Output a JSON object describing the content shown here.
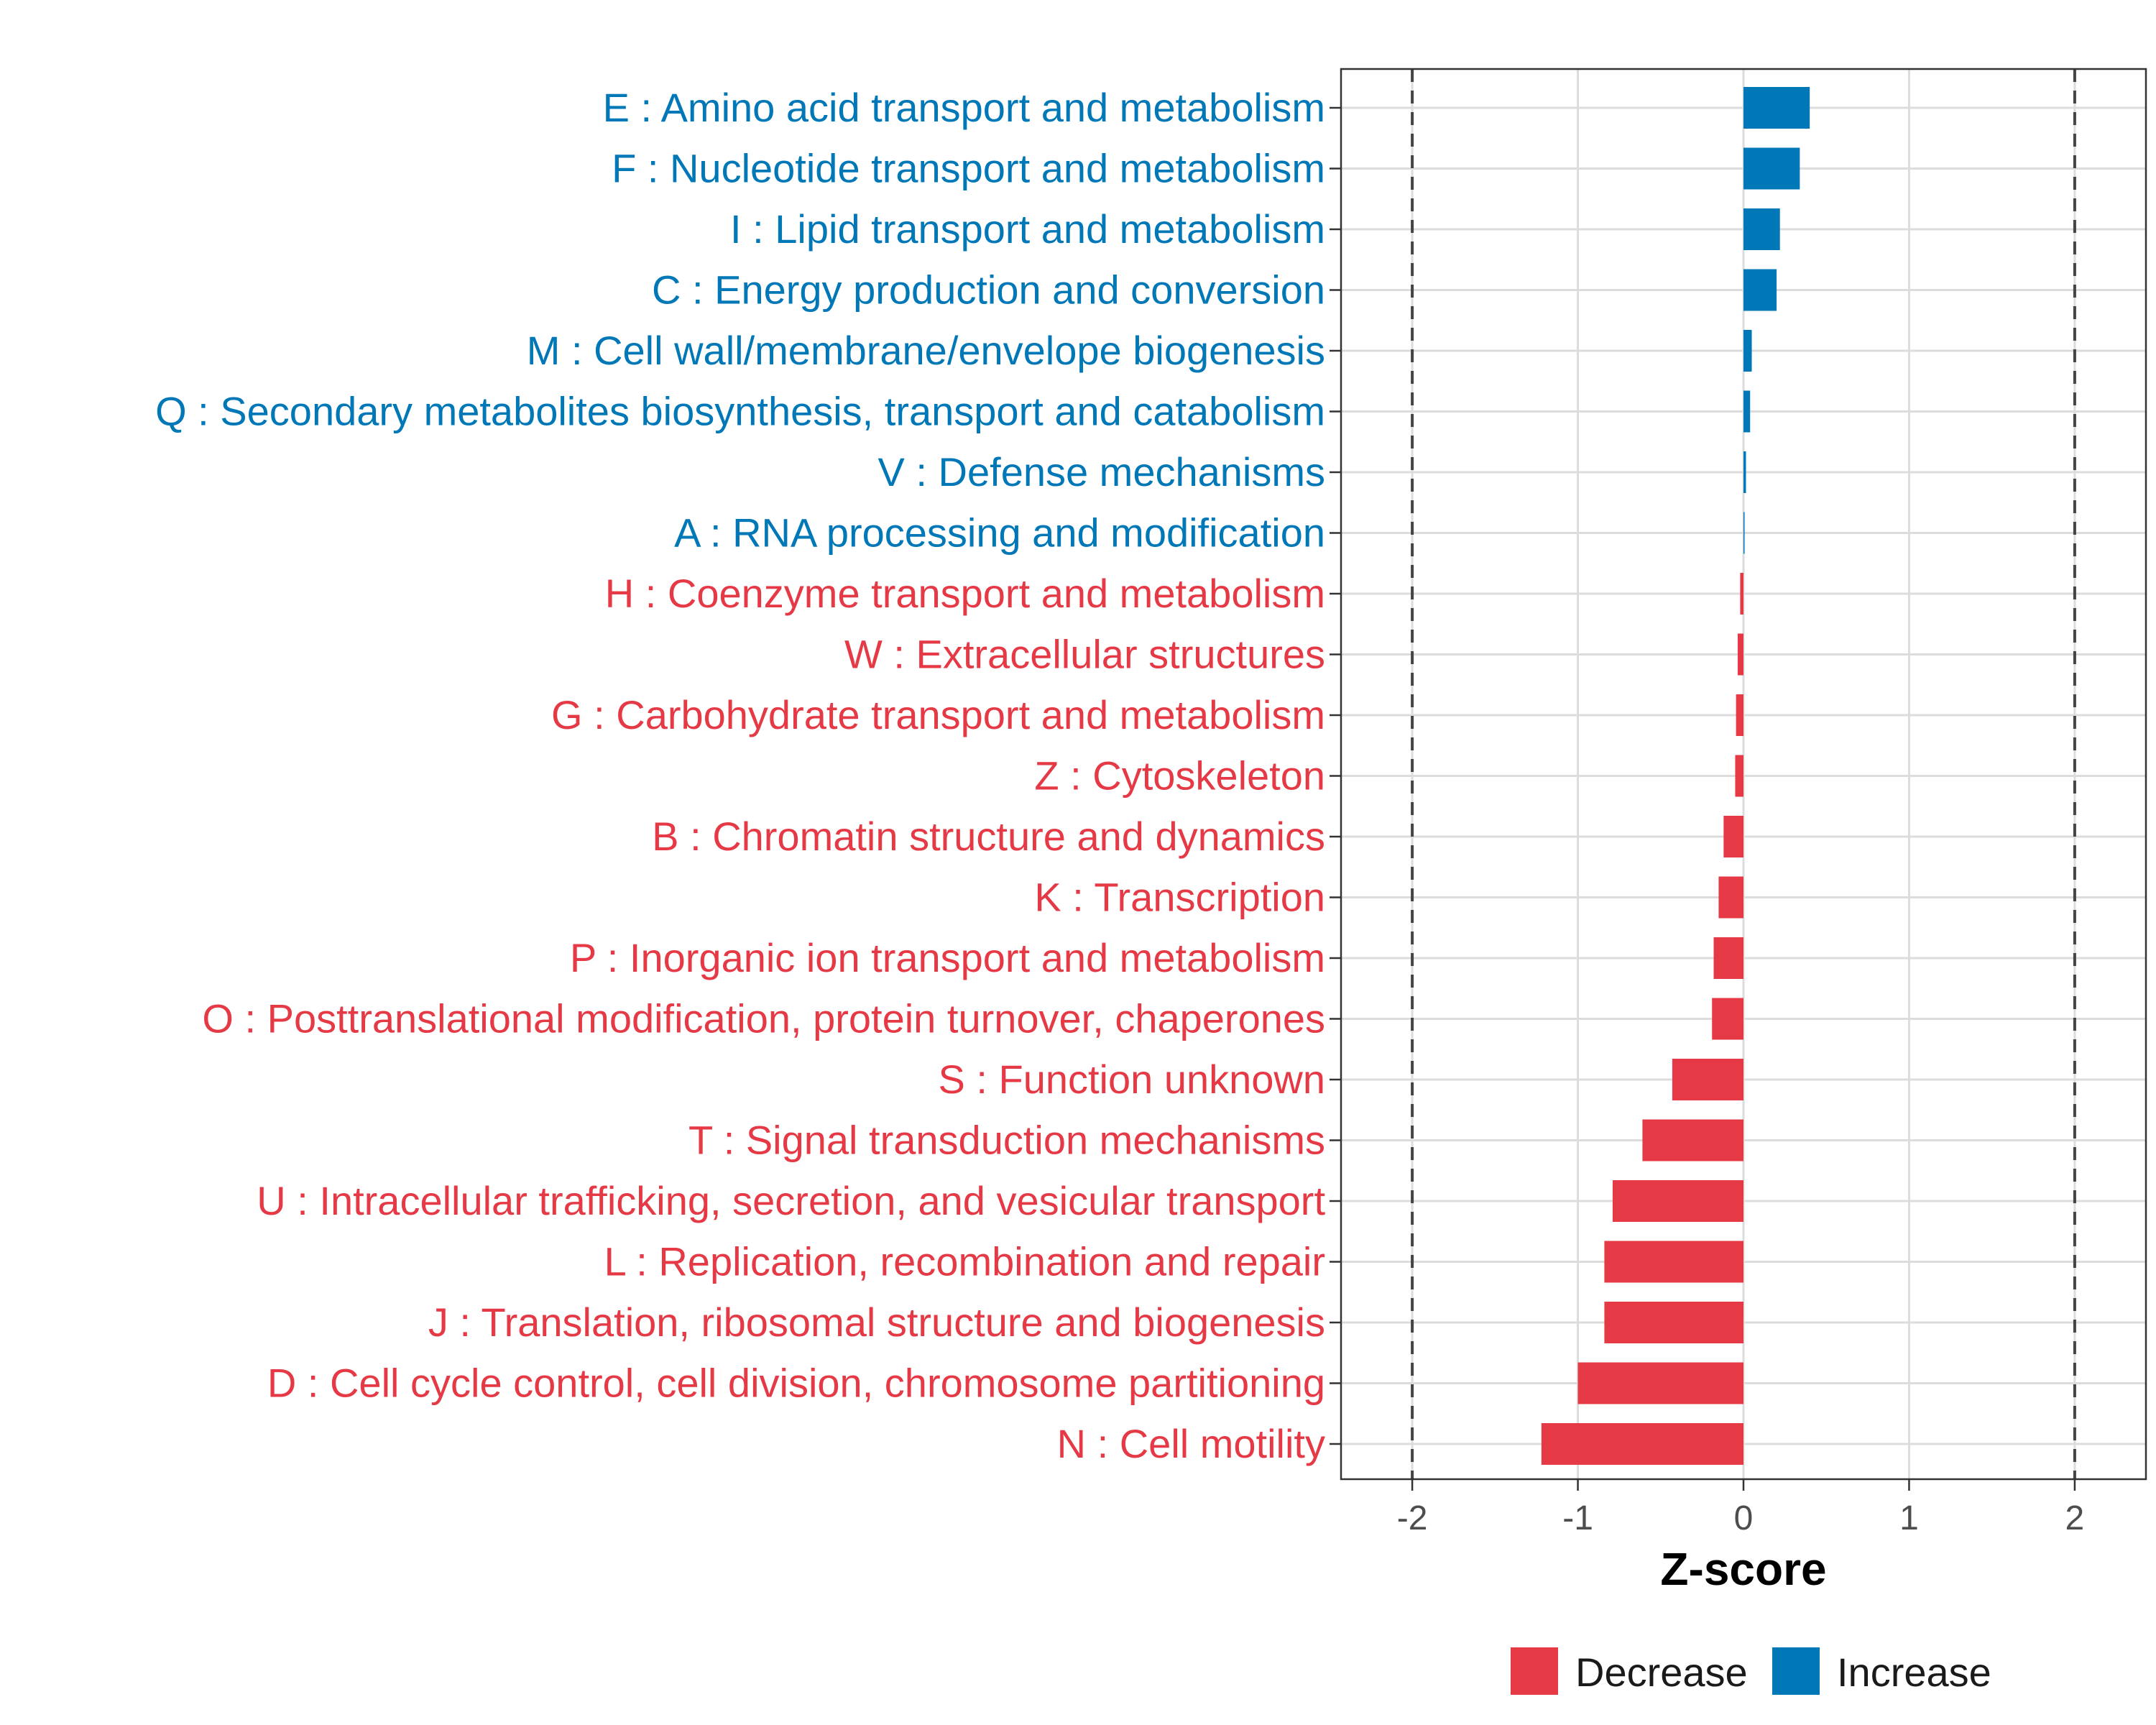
{
  "chart_data": {
    "type": "bar",
    "orientation": "horizontal",
    "xlabel": "Z-score",
    "ylabel": "",
    "xlim": [
      -2.43,
      2.43
    ],
    "xticks": [
      -2,
      -1,
      0,
      1,
      2
    ],
    "xtick_labels": [
      "-2",
      "-1",
      "0",
      "1",
      "2"
    ],
    "reference_lines": [
      -2,
      2
    ],
    "grid": true,
    "legend_position": "bottom",
    "colors": {
      "Decrease": "#E63946",
      "Increase": "#0077B6"
    },
    "legend": [
      {
        "label": "Decrease",
        "color": "#E63946"
      },
      {
        "label": "Increase",
        "color": "#0077B6"
      }
    ],
    "categories": [
      "E : Amino acid transport and metabolism",
      "F : Nucleotide transport and metabolism",
      "I : Lipid transport and metabolism",
      "C : Energy production and conversion",
      "M : Cell wall/membrane/envelope biogenesis",
      "Q : Secondary metabolites biosynthesis, transport and catabolism",
      "V : Defense mechanisms",
      "A : RNA processing and modification",
      "H : Coenzyme transport and metabolism",
      "W : Extracellular structures",
      "G : Carbohydrate transport and metabolism",
      "Z : Cytoskeleton",
      "B : Chromatin structure and dynamics",
      "K : Transcription",
      "P : Inorganic ion transport and metabolism",
      "O : Posttranslational modification, protein turnover, chaperones",
      "S : Function unknown",
      "T : Signal transduction mechanisms",
      "U : Intracellular trafficking, secretion, and vesicular transport",
      "L : Replication, recombination and repair",
      "J : Translation, ribosomal structure and biogenesis",
      "D : Cell cycle control, cell division, chromosome partitioning",
      "N : Cell motility"
    ],
    "values": [
      0.4,
      0.34,
      0.22,
      0.2,
      0.05,
      0.04,
      0.015,
      0.005,
      -0.02,
      -0.035,
      -0.045,
      -0.05,
      -0.12,
      -0.15,
      -0.18,
      -0.19,
      -0.43,
      -0.61,
      -0.79,
      -0.84,
      -0.84,
      -1.0,
      -1.22
    ],
    "direction": [
      "Increase",
      "Increase",
      "Increase",
      "Increase",
      "Increase",
      "Increase",
      "Increase",
      "Increase",
      "Decrease",
      "Decrease",
      "Decrease",
      "Decrease",
      "Decrease",
      "Decrease",
      "Decrease",
      "Decrease",
      "Decrease",
      "Decrease",
      "Decrease",
      "Decrease",
      "Decrease",
      "Decrease",
      "Decrease"
    ]
  }
}
